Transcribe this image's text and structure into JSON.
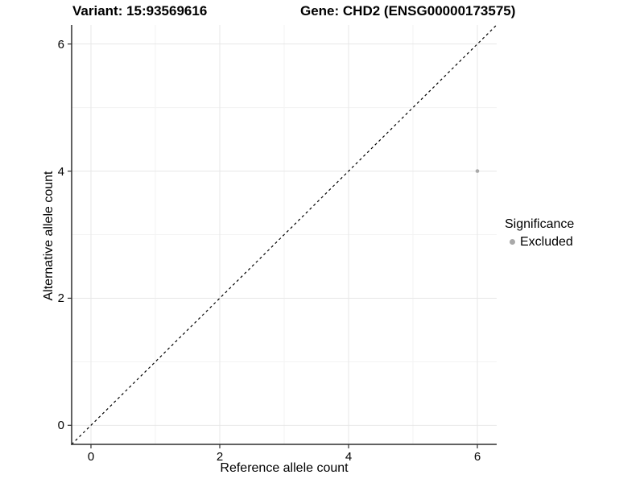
{
  "chart_data": {
    "type": "scatter",
    "title_left": "Variant: 15:93569616",
    "title_right": "Gene: CHD2 (ENSG00000173575)",
    "xlabel": "Reference allele count",
    "ylabel": "Alternative allele count",
    "xlim": [
      -0.3,
      6.3
    ],
    "ylim": [
      -0.3,
      6.3
    ],
    "xticks": [
      0,
      2,
      4,
      6
    ],
    "yticks": [
      0,
      2,
      4,
      6
    ],
    "minor_ticks": [
      1,
      3,
      5
    ],
    "grid": "major and minor, very light gray on white",
    "points": [
      {
        "x": 6,
        "y": 4,
        "series": "Excluded"
      }
    ],
    "reference_line": {
      "type": "identity y=x",
      "style": "dashed",
      "from": -0.3,
      "to": 6.3
    },
    "legend": {
      "title": "Significance",
      "position": "right",
      "items": [
        {
          "label": "Excluded",
          "color": "#a9a9a9"
        }
      ]
    },
    "colors": {
      "point": "#a9a9a9",
      "grid_major": "#e7e7e7",
      "grid_minor": "#f3f3f3",
      "axis_line": "#2f2f2f",
      "tick_mark": "#2f2f2f",
      "dashed_line": "#000000",
      "text": "#000000",
      "background": "#ffffff"
    }
  }
}
